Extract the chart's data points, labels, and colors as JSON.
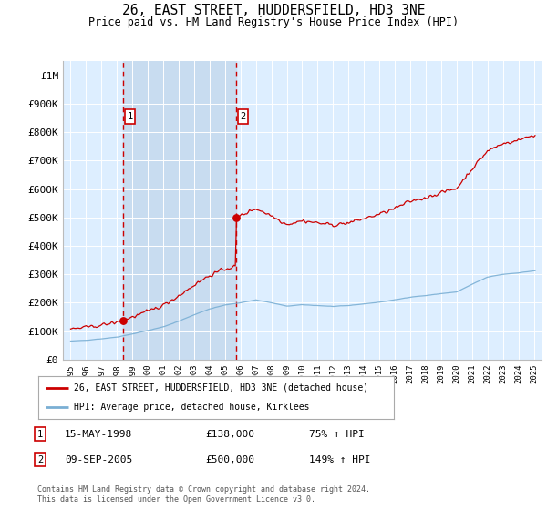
{
  "title": "26, EAST STREET, HUDDERSFIELD, HD3 3NE",
  "subtitle": "Price paid vs. HM Land Registry's House Price Index (HPI)",
  "background_color": "#ffffff",
  "plot_bg_color": "#ddeeff",
  "shade_color": "#c8dcf0",
  "grid_color": "#ffffff",
  "y_ticks": [
    0,
    100000,
    200000,
    300000,
    400000,
    500000,
    600000,
    700000,
    800000,
    900000,
    1000000
  ],
  "y_tick_labels": [
    "£0",
    "£100K",
    "£200K",
    "£300K",
    "£400K",
    "£500K",
    "£600K",
    "£700K",
    "£800K",
    "£900K",
    "£1M"
  ],
  "x_start_year": 1995,
  "x_end_year": 2025,
  "red_line_color": "#cc0000",
  "blue_line_color": "#7aafd4",
  "sale1_year": 1998.37,
  "sale1_price": 138000,
  "sale2_year": 2005.69,
  "sale2_price": 500000,
  "legend_red_label": "26, EAST STREET, HUDDERSFIELD, HD3 3NE (detached house)",
  "legend_blue_label": "HPI: Average price, detached house, Kirklees",
  "sale1_date": "15-MAY-1998",
  "sale1_amount": "£138,000",
  "sale1_hpi": "75% ↑ HPI",
  "sale2_date": "09-SEP-2005",
  "sale2_amount": "£500,000",
  "sale2_hpi": "149% ↑ HPI",
  "footer_text": "Contains HM Land Registry data © Crown copyright and database right 2024.\nThis data is licensed under the Open Government Licence v3.0.",
  "ylim": [
    0,
    1050000
  ],
  "xlim": [
    1994.5,
    2025.5
  ]
}
